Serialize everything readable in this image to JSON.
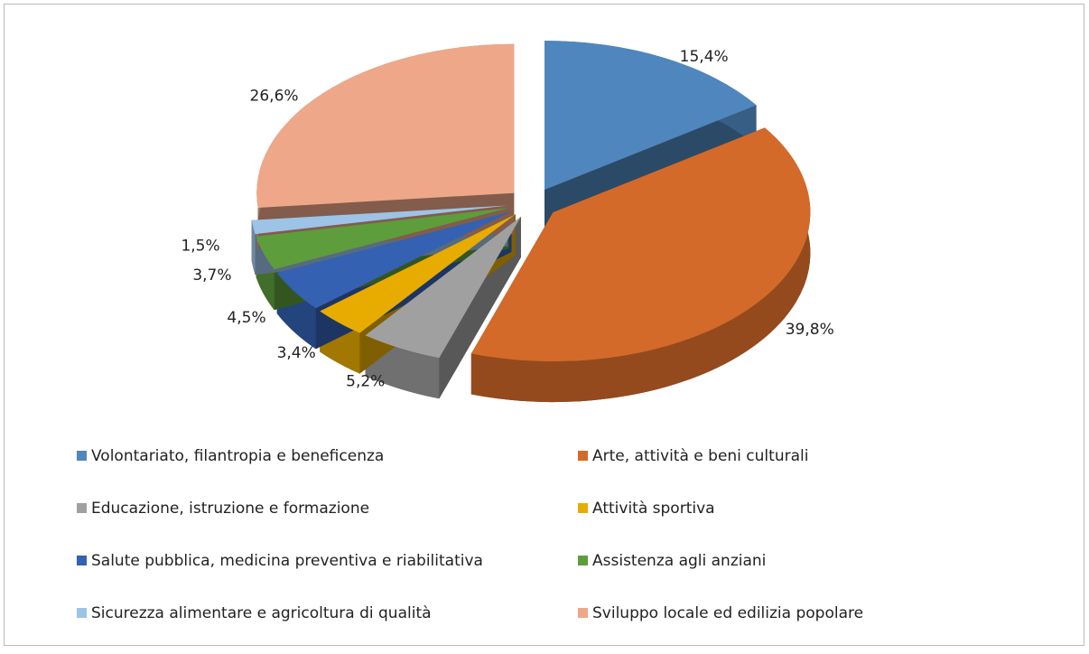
{
  "chart_data": {
    "type": "pie3d",
    "categories": [
      "Volontariato, filantropia e beneficenza",
      "Arte, attività e beni culturali",
      "Educazione, istruzione e formazione",
      "Attività sportiva",
      "Salute pubblica, medicina preventiva e riabilitativa",
      "Assistenza agli anziani",
      "Sicurezza alimentare e agricoltura di qualità",
      "Sviluppo locale ed edilizia popolare"
    ],
    "values": [
      15.4,
      39.8,
      5.2,
      3.4,
      4.5,
      3.7,
      1.5,
      26.6
    ],
    "value_labels": [
      "15,4%",
      "39,8%",
      "5,2%",
      "3,4%",
      "4,5%",
      "3,7%",
      "1,5%",
      "26,6%"
    ],
    "colors": [
      "#4f86bd",
      "#d36a2a",
      "#a0a0a0",
      "#e8ac00",
      "#3461b2",
      "#5d9d3c",
      "#9dc3e6",
      "#eea789"
    ],
    "legend": "bottom"
  }
}
